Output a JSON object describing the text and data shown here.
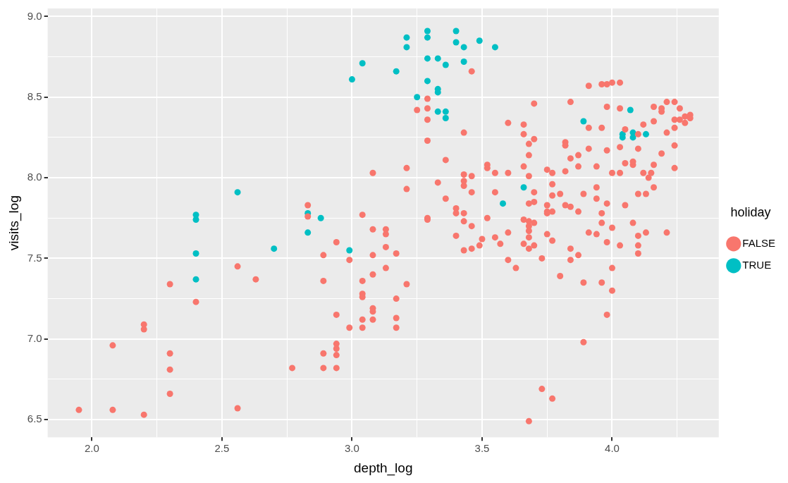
{
  "chart_data": {
    "type": "scatter",
    "xlabel": "depth_log",
    "ylabel": "visits_log",
    "legend_title": "holiday",
    "legend": "right",
    "grid": true,
    "marker": "circle",
    "xlim": [
      1.83,
      4.41
    ],
    "ylim": [
      6.39,
      9.05
    ],
    "xticks": [
      {
        "value": 2,
        "label": "2.0"
      },
      {
        "value": 2.25,
        "label": null
      },
      {
        "value": 2.5,
        "label": "2.5"
      },
      {
        "value": 2.75,
        "label": null
      },
      {
        "value": 3,
        "label": "3.0"
      },
      {
        "value": 3.25,
        "label": null
      },
      {
        "value": 3.5,
        "label": "3.5"
      },
      {
        "value": 3.75,
        "label": null
      },
      {
        "value": 4,
        "label": "4.0"
      },
      {
        "value": 4.25,
        "label": null
      }
    ],
    "yticks": [
      {
        "value": 6.5,
        "label": "6.5"
      },
      {
        "value": 6.75,
        "label": null
      },
      {
        "value": 7,
        "label": "7.0"
      },
      {
        "value": 7.25,
        "label": null
      },
      {
        "value": 7.5,
        "label": "7.5"
      },
      {
        "value": 7.75,
        "label": null
      },
      {
        "value": 8,
        "label": "8.0"
      },
      {
        "value": 8.25,
        "label": null
      },
      {
        "value": 8.5,
        "label": "8.5"
      },
      {
        "value": 8.75,
        "label": null
      },
      {
        "value": 9,
        "label": "9.0"
      }
    ],
    "series": [
      {
        "name": "FALSE",
        "color": "#f8766d",
        "x": [
          1.95,
          2.08,
          2.08,
          2.2,
          2.2,
          2.2,
          2.3,
          2.3,
          2.3,
          2.3,
          2.4,
          2.56,
          2.56,
          2.63,
          2.77,
          2.83,
          2.83,
          2.89,
          2.89,
          2.89,
          2.89,
          2.94,
          2.94,
          2.94,
          2.94,
          2.94,
          2.94,
          2.99,
          2.99,
          3.04,
          3.04,
          3.04,
          3.04,
          3.04,
          3.04,
          3.08,
          3.08,
          3.08,
          3.08,
          3.08,
          3.08,
          3.08,
          3.13,
          3.13,
          3.13,
          3.13,
          3.17,
          3.17,
          3.17,
          3.17,
          3.21,
          3.21,
          3.21,
          3.25,
          3.29,
          3.29,
          3.29,
          3.29,
          3.29,
          3.29,
          3.33,
          3.36,
          3.36,
          3.4,
          3.4,
          3.4,
          3.43,
          3.43,
          3.43,
          3.43,
          3.43,
          3.43,
          3.43,
          3.46,
          3.46,
          3.46,
          3.46,
          3.46,
          3.49,
          3.5,
          3.52,
          3.52,
          3.52,
          3.55,
          3.55,
          3.55,
          3.57,
          3.6,
          3.6,
          3.6,
          3.6,
          3.63,
          3.66,
          3.66,
          3.66,
          3.66,
          3.66,
          3.68,
          3.68,
          3.68,
          3.68,
          3.68,
          3.68,
          3.68,
          3.68,
          3.68,
          3.68,
          3.7,
          3.7,
          3.7,
          3.7,
          3.7,
          3.7,
          3.73,
          3.73,
          3.75,
          3.75,
          3.75,
          3.75,
          3.75,
          3.77,
          3.77,
          3.77,
          3.77,
          3.77,
          3.77,
          3.8,
          3.8,
          3.82,
          3.82,
          3.82,
          3.84,
          3.84,
          3.84,
          3.84,
          3.84,
          3.87,
          3.87,
          3.87,
          3.87,
          3.89,
          3.89,
          3.89,
          3.91,
          3.91,
          3.91,
          3.91,
          3.94,
          3.94,
          3.94,
          3.94,
          3.96,
          3.96,
          3.96,
          3.96,
          3.96,
          3.98,
          3.98,
          3.98,
          3.98,
          3.98,
          3.98,
          4.0,
          4.0,
          4.0,
          4.0,
          4.0,
          4.03,
          4.03,
          4.03,
          4.03,
          4.03,
          4.05,
          4.05,
          4.05,
          4.08,
          4.08,
          4.1,
          4.1,
          4.1,
          4.1,
          4.1,
          4.12,
          4.12,
          4.14,
          4.16,
          4.16,
          4.16,
          4.16,
          4.19,
          4.19,
          4.21,
          4.21,
          4.24,
          4.24,
          4.24,
          4.24,
          4.26,
          4.26,
          4.28,
          4.28,
          4.3,
          4.3,
          4.19,
          4.08,
          4.24,
          4.21,
          4.1,
          4.15,
          4.13,
          4.13,
          3.82
        ],
        "values": [
          6.56,
          6.56,
          6.96,
          7.09,
          7.06,
          6.53,
          7.34,
          6.91,
          6.81,
          6.66,
          7.23,
          7.45,
          6.57,
          7.37,
          6.82,
          7.83,
          7.76,
          7.36,
          7.52,
          6.91,
          6.82,
          7.6,
          7.15,
          6.97,
          6.94,
          6.9,
          6.82,
          7.49,
          7.07,
          7.77,
          7.36,
          7.28,
          7.26,
          7.12,
          7.07,
          8.03,
          7.68,
          7.52,
          7.4,
          7.19,
          7.17,
          7.12,
          7.68,
          7.65,
          7.57,
          7.44,
          7.53,
          7.13,
          7.07,
          7.25,
          8.06,
          7.93,
          7.34,
          8.42,
          8.49,
          8.43,
          8.36,
          8.23,
          7.75,
          7.74,
          7.97,
          8.11,
          7.87,
          7.81,
          7.78,
          7.64,
          8.28,
          8.02,
          7.98,
          7.95,
          7.78,
          7.73,
          7.55,
          8.01,
          7.91,
          7.7,
          7.56,
          8.66,
          7.58,
          7.62,
          8.08,
          8.06,
          7.75,
          8.03,
          7.91,
          7.63,
          7.59,
          8.34,
          8.03,
          7.66,
          7.49,
          7.44,
          8.33,
          8.27,
          8.07,
          7.74,
          7.59,
          8.21,
          8.14,
          8.01,
          7.84,
          7.73,
          7.7,
          7.67,
          7.63,
          7.56,
          6.49,
          8.46,
          8.24,
          7.91,
          7.85,
          7.72,
          7.58,
          7.5,
          6.69,
          8.05,
          7.83,
          7.79,
          7.78,
          7.65,
          7.61,
          6.63,
          8.03,
          7.96,
          7.89,
          7.79,
          7.9,
          7.39,
          8.22,
          8.04,
          7.83,
          8.47,
          8.12,
          7.82,
          7.56,
          7.49,
          8.14,
          8.07,
          7.79,
          7.52,
          7.9,
          7.35,
          6.98,
          7.66,
          8.57,
          8.31,
          8.18,
          8.07,
          7.94,
          7.87,
          7.65,
          8.58,
          8.31,
          7.35,
          7.78,
          7.72,
          8.58,
          8.44,
          8.17,
          7.84,
          7.6,
          7.15,
          8.59,
          8.03,
          7.44,
          7.3,
          7.69,
          8.59,
          8.19,
          8.03,
          7.58,
          8.43,
          8.3,
          8.09,
          7.83,
          8.08,
          7.72,
          7.64,
          7.58,
          8.18,
          8.27,
          7.9,
          8.03,
          8.33,
          8.0,
          8.44,
          8.08,
          7.94,
          8.35,
          8.43,
          8.41,
          8.47,
          8.28,
          8.47,
          8.36,
          8.31,
          8.06,
          8.43,
          8.36,
          8.38,
          8.34,
          8.39,
          8.37,
          8.15,
          8.1,
          8.2,
          7.66,
          7.53,
          8.03,
          7.9,
          7.66,
          8.2
        ]
      },
      {
        "name": "TRUE",
        "color": "#00bfc4",
        "x": [
          3.21,
          3.21,
          3.29,
          3.29,
          3.4,
          3.4,
          3.43,
          3.49,
          3.55,
          3.04,
          3.0,
          3.17,
          3.29,
          3.33,
          3.36,
          3.43,
          3.25,
          3.29,
          3.33,
          3.33,
          3.33,
          3.36,
          3.36,
          2.56,
          2.4,
          2.4,
          2.4,
          2.4,
          2.83,
          2.83,
          2.88,
          2.7,
          2.99,
          3.66,
          3.58,
          3.89,
          4.07,
          4.04,
          4.04,
          4.08,
          4.08,
          4.13
        ],
        "values": [
          8.87,
          8.81,
          8.91,
          8.87,
          8.91,
          8.84,
          8.81,
          8.85,
          8.81,
          8.71,
          8.61,
          8.66,
          8.74,
          8.74,
          8.7,
          8.72,
          8.5,
          8.6,
          8.55,
          8.53,
          8.41,
          8.41,
          8.37,
          7.91,
          7.77,
          7.74,
          7.53,
          7.37,
          7.78,
          7.66,
          7.75,
          7.56,
          7.55,
          7.94,
          7.84,
          8.35,
          8.42,
          8.27,
          8.25,
          8.28,
          8.25,
          8.27
        ]
      }
    ]
  }
}
